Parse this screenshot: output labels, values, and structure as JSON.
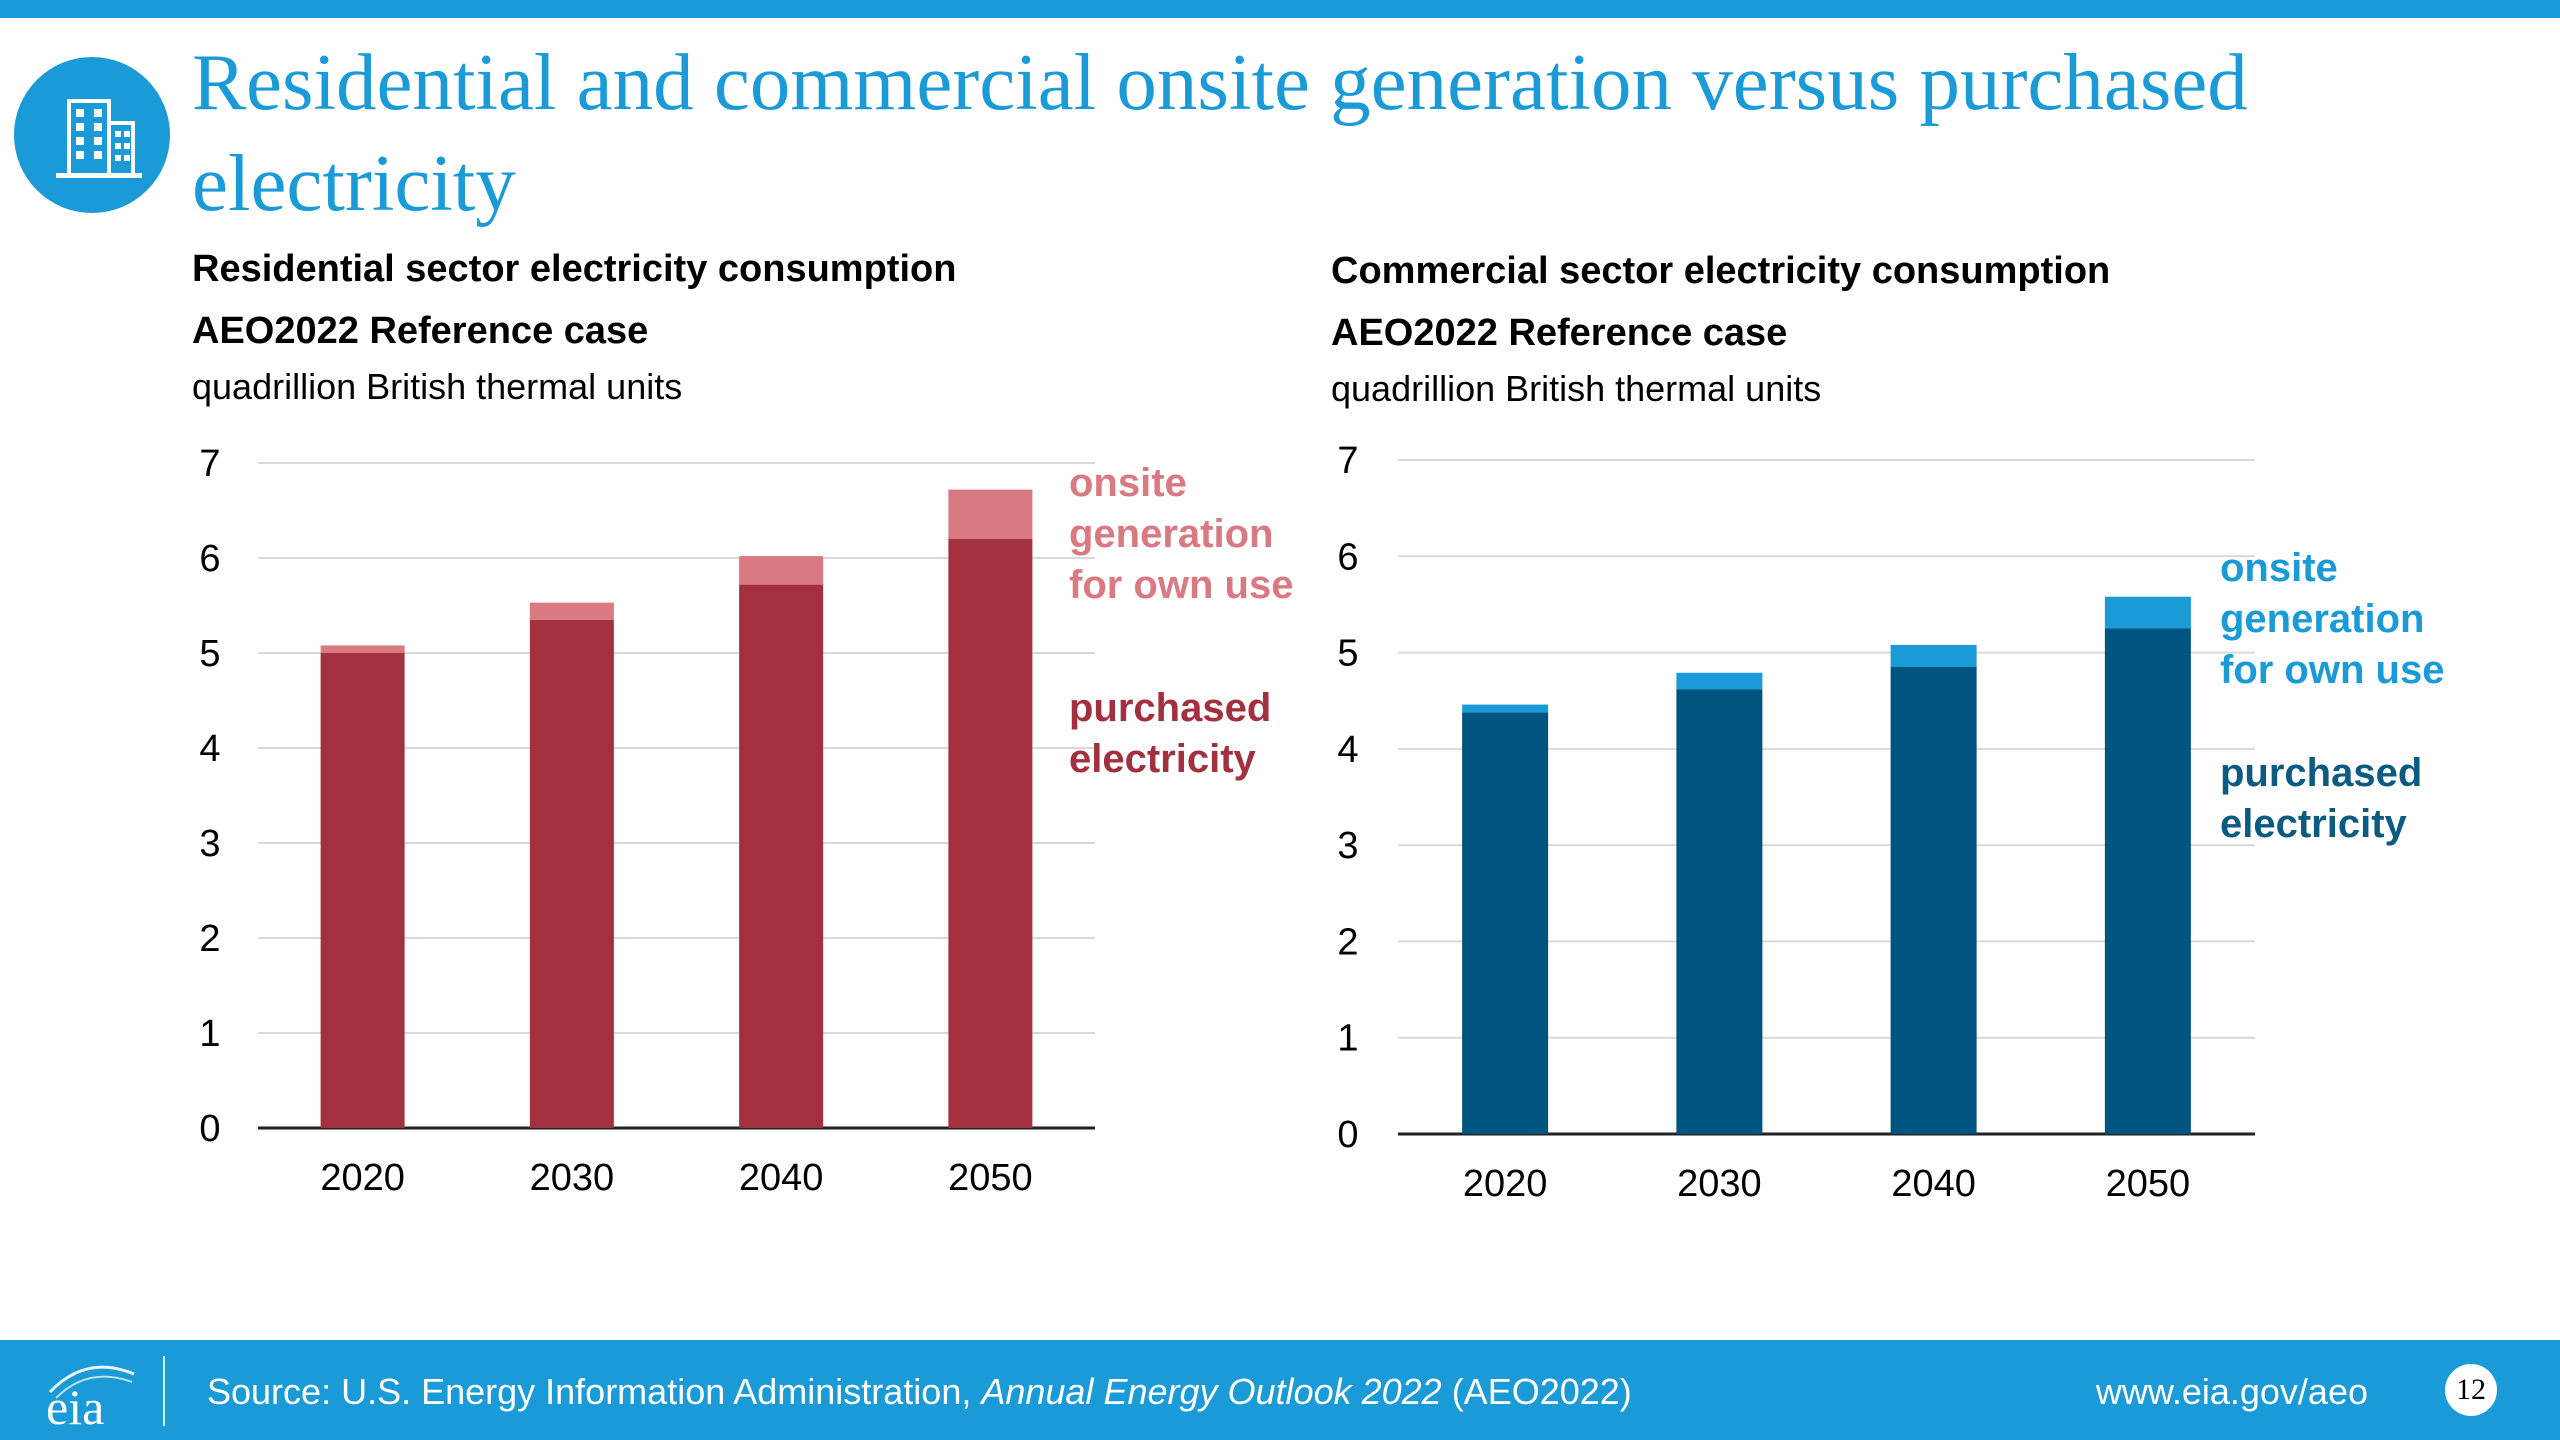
{
  "slide": {
    "title": "Residential and commercial onsite generation versus purchased electricity",
    "page_number": "12"
  },
  "footer": {
    "source_prefix": "Source: U.S. Energy Information Administration, ",
    "source_italic": "Annual Energy Outlook 2022",
    "source_suffix": " (AEO2022)",
    "url": "www.eia.gov/aeo",
    "logo_text": "eia"
  },
  "icons": {
    "title_icon": "office-building-icon",
    "footer_logo": "eia-logo"
  },
  "colors": {
    "accent": "#1a9bd7",
    "residential_purchased": "#a3303f",
    "residential_onsite": "#d97a83",
    "commercial_purchased": "#005480",
    "commercial_onsite": "#1a9bd7",
    "commercial_purchased_label": "#0b5a82"
  },
  "chart_data": [
    {
      "id": "residential",
      "type": "bar",
      "stacked": true,
      "title": "Residential sector electricity consumption",
      "subtitle": "AEO2022 Reference case",
      "ylabel": "quadrillion British thermal units",
      "categories": [
        "2020",
        "2030",
        "2040",
        "2050"
      ],
      "ylim": [
        0,
        7
      ],
      "yticks": [
        "0",
        "1",
        "2",
        "3",
        "4",
        "5",
        "6",
        "7"
      ],
      "grid": true,
      "series": [
        {
          "name": "purchased electricity",
          "values": [
            5.0,
            5.35,
            5.72,
            6.2
          ]
        },
        {
          "name": "onsite generation for own use",
          "values": [
            0.08,
            0.18,
            0.3,
            0.52
          ]
        }
      ],
      "legend": {
        "onsite": "onsite\ngeneration\nfor own use",
        "purchased": "purchased\nelectricity"
      }
    },
    {
      "id": "commercial",
      "type": "bar",
      "stacked": true,
      "title": "Commercial sector electricity consumption",
      "subtitle": "AEO2022 Reference case",
      "ylabel": "quadrillion British thermal units",
      "categories": [
        "2020",
        "2030",
        "2040",
        "2050"
      ],
      "ylim": [
        0,
        7
      ],
      "yticks": [
        "0",
        "1",
        "2",
        "3",
        "4",
        "5",
        "6",
        "7"
      ],
      "grid": true,
      "series": [
        {
          "name": "purchased electricity",
          "values": [
            4.38,
            4.62,
            4.85,
            5.25
          ]
        },
        {
          "name": "onsite generation for own use",
          "values": [
            0.08,
            0.17,
            0.23,
            0.33
          ]
        }
      ],
      "legend": {
        "onsite": "onsite\ngeneration\nfor own use",
        "purchased": "purchased\nelectricity"
      }
    }
  ]
}
